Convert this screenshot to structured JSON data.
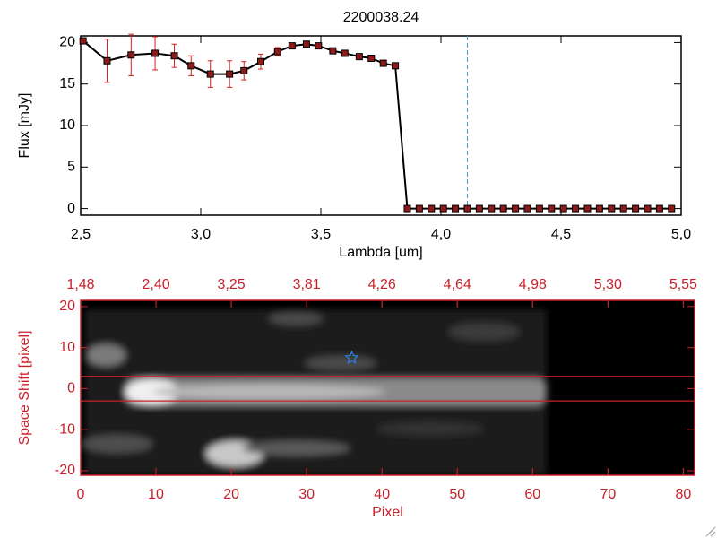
{
  "chart_data": [
    {
      "type": "line",
      "title": "2200038.24",
      "x_label": "Lambda [um]",
      "y_label": "Flux [mJy]",
      "color": "#000000",
      "marker_color": "#8b1a1a",
      "error_color": "#d42020",
      "x": [
        2.51,
        2.61,
        2.71,
        2.81,
        2.89,
        2.96,
        3.04,
        3.12,
        3.18,
        3.25,
        3.32,
        3.38,
        3.44,
        3.49,
        3.55,
        3.6,
        3.66,
        3.71,
        3.76,
        3.81,
        3.86,
        3.91,
        3.96,
        4.01,
        4.06,
        4.11,
        4.16,
        4.21,
        4.26,
        4.31,
        4.36,
        4.41,
        4.46,
        4.51,
        4.56,
        4.61,
        4.66,
        4.71,
        4.76,
        4.81,
        4.86,
        4.91,
        4.96
      ],
      "values": [
        20.2,
        17.8,
        18.5,
        18.7,
        18.4,
        17.2,
        16.2,
        16.2,
        16.6,
        17.7,
        18.9,
        19.6,
        19.8,
        19.6,
        19.0,
        18.7,
        18.3,
        18.1,
        17.5,
        17.2,
        0,
        0,
        0,
        0,
        0,
        0,
        0,
        0,
        0,
        0,
        0,
        0,
        0,
        0,
        0,
        0,
        0,
        0,
        0,
        0,
        0,
        0,
        0
      ],
      "errors": [
        0.2,
        2.6,
        2.5,
        2.0,
        1.4,
        1.2,
        1.6,
        1.6,
        1.1,
        0.9,
        0.5,
        0.3,
        0.3,
        0.3,
        0.3,
        0.3,
        0.3,
        0.3,
        0.3,
        0.3,
        0,
        0,
        0,
        0,
        0,
        0,
        0,
        0,
        0,
        0,
        0,
        0,
        0,
        0,
        0,
        0,
        0,
        0,
        0,
        0,
        0,
        0,
        0
      ],
      "vline": 4.11,
      "vline_color": "#3a9bc8",
      "xlim": [
        2.5,
        5.0
      ],
      "xticks": [
        {
          "value": 2.5,
          "label": "2,5"
        },
        {
          "value": 3.0,
          "label": "3,0"
        },
        {
          "value": 3.5,
          "label": "3,5"
        },
        {
          "value": 4.0,
          "label": "4,0"
        },
        {
          "value": 4.5,
          "label": "4,5"
        },
        {
          "value": 5.0,
          "label": "5,0"
        }
      ],
      "ylim": [
        -0.8,
        20.8
      ],
      "yticks": [
        0,
        5,
        10,
        15,
        20
      ]
    },
    {
      "type": "image",
      "x_label": "Pixel",
      "y_label": "Space Shift [pixel]",
      "color": "#c8202a",
      "xlim": [
        0,
        81.5
      ],
      "xticks": [
        0,
        10,
        20,
        30,
        40,
        50,
        60,
        70,
        80
      ],
      "top_xticks": [
        {
          "value": 0,
          "label": "1,48"
        },
        {
          "value": 10,
          "label": "2,40"
        },
        {
          "value": 20,
          "label": "3,25"
        },
        {
          "value": 30,
          "label": "3,81"
        },
        {
          "value": 40,
          "label": "4,26"
        },
        {
          "value": 50,
          "label": "4,64"
        },
        {
          "value": 60,
          "label": "4,98"
        },
        {
          "value": 70,
          "label": "5,30"
        },
        {
          "value": 80,
          "label": "5,55"
        }
      ],
      "ylim": [
        -21.1,
        21.5
      ],
      "yticks": [
        -20,
        -10,
        0,
        10,
        20
      ],
      "hlines": [
        3,
        -3
      ],
      "star": {
        "x": 36,
        "y": 7.5,
        "color": "#2a7fe0"
      }
    }
  ]
}
